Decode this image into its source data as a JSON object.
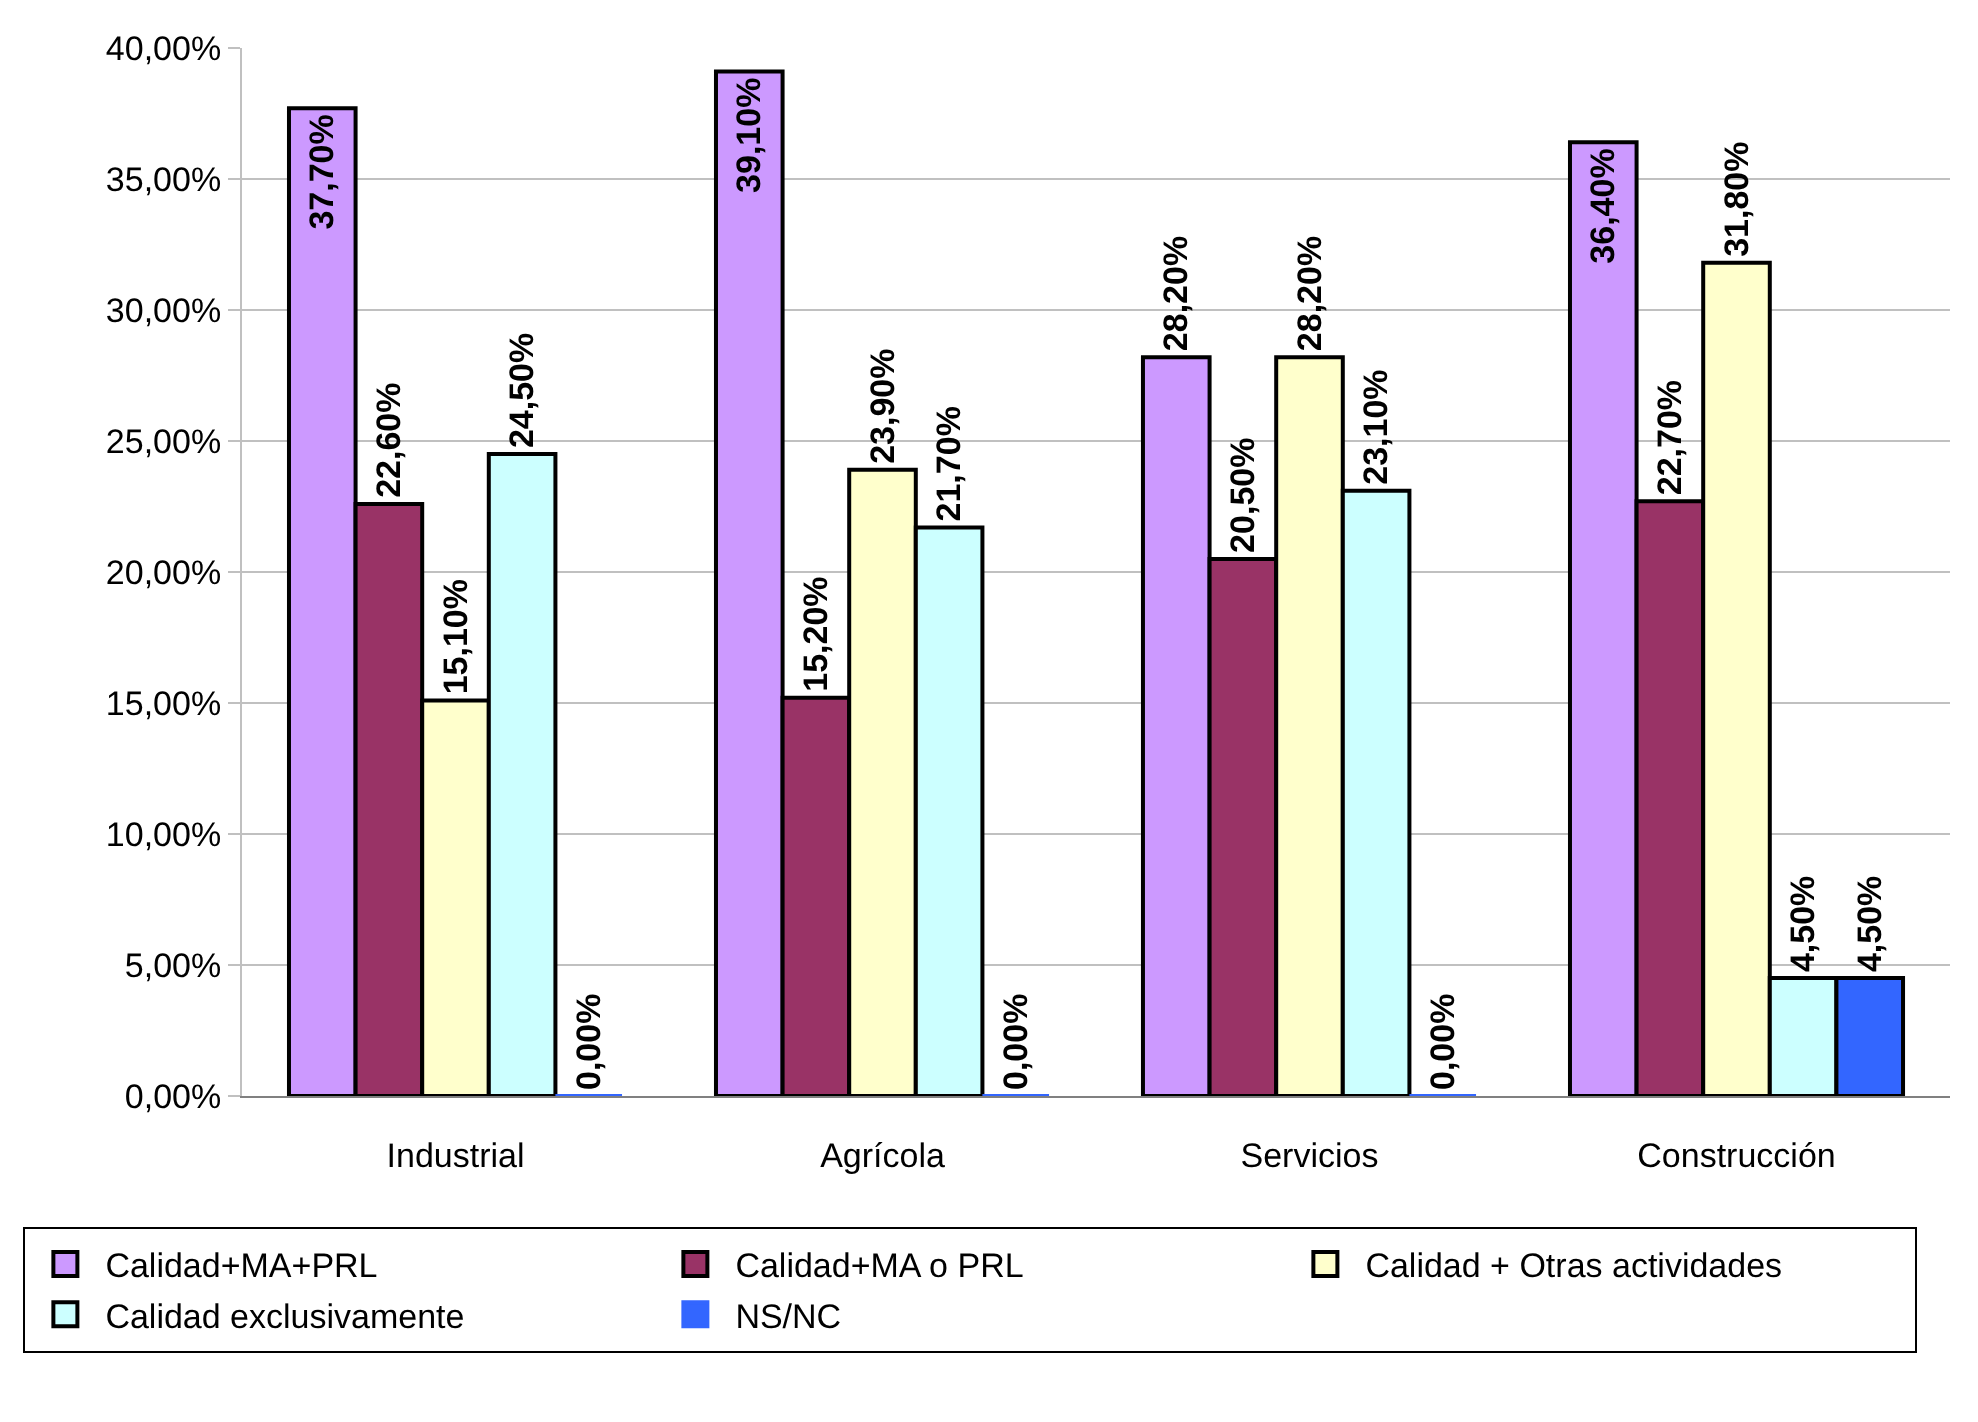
{
  "chart_data": {
    "type": "bar",
    "categories": [
      "Industrial",
      "Agrícola",
      "Servicios",
      "Construcción"
    ],
    "series": [
      {
        "name": "Calidad+MA+PRL",
        "color": "#cc99ff",
        "values": [
          37.7,
          39.1,
          28.2,
          36.4
        ],
        "value_labels": [
          "37,70%",
          "39,10%",
          "28,20%",
          "36,40%"
        ]
      },
      {
        "name": "Calidad+MA o PRL",
        "color": "#993366",
        "values": [
          22.6,
          15.2,
          20.5,
          22.7
        ],
        "value_labels": [
          "22,60%",
          "15,20%",
          "20,50%",
          "22,70%"
        ]
      },
      {
        "name": "Calidad + Otras actividades",
        "color": "#ffffcc",
        "values": [
          15.1,
          23.9,
          28.2,
          31.8
        ],
        "value_labels": [
          "15,10%",
          "23,90%",
          "28,20%",
          "31,80%"
        ]
      },
      {
        "name": "Calidad exclusivamente",
        "color": "#ccffff",
        "values": [
          24.5,
          21.7,
          23.1,
          4.5
        ],
        "value_labels": [
          "24,50%",
          "21,70%",
          "23,10%",
          "4,50%"
        ]
      },
      {
        "name": "NS/NC",
        "color": "#3366ff",
        "values": [
          0,
          0,
          0,
          4.5
        ],
        "value_labels": [
          "0,00%",
          "0,00%",
          "0,00%",
          "4,50%"
        ]
      }
    ],
    "ylim": [
      0,
      40
    ],
    "yticks": [
      {
        "value": 0,
        "label": "0,00%"
      },
      {
        "value": 5,
        "label": "5,00%"
      },
      {
        "value": 10,
        "label": "10,00%"
      },
      {
        "value": 15,
        "label": "15,00%"
      },
      {
        "value": 20,
        "label": "20,00%"
      },
      {
        "value": 25,
        "label": "25,00%"
      },
      {
        "value": 30,
        "label": "30,00%"
      },
      {
        "value": 35,
        "label": "35,00%"
      },
      {
        "value": 40,
        "label": "40,00%"
      }
    ],
    "grid": "y",
    "legend": "bottom"
  }
}
